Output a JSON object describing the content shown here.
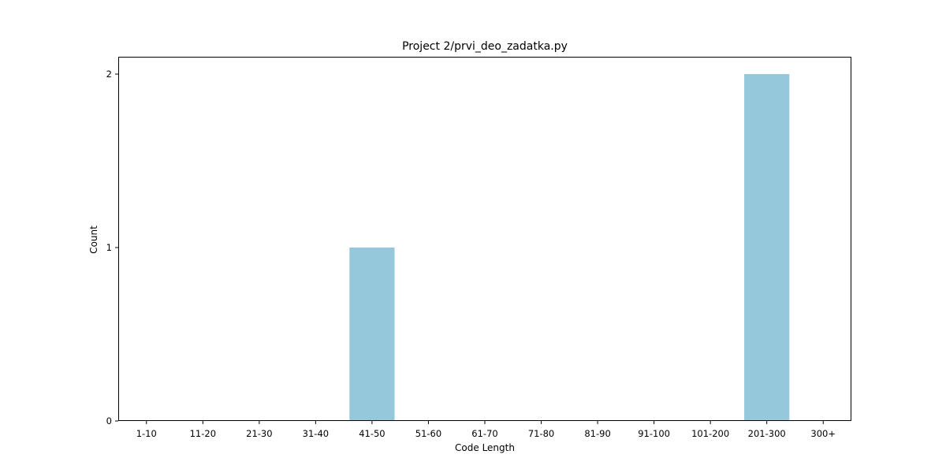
{
  "chart_data": {
    "type": "bar",
    "title": "Project 2/prvi_deo_zadatka.py",
    "xlabel": "Code Length",
    "ylabel": "Count",
    "categories": [
      "1-10",
      "11-20",
      "21-30",
      "31-40",
      "41-50",
      "51-60",
      "61-70",
      "71-80",
      "81-90",
      "91-100",
      "101-200",
      "201-300",
      "300+"
    ],
    "values": [
      0,
      0,
      0,
      0,
      1,
      0,
      0,
      0,
      0,
      0,
      0,
      2,
      0
    ],
    "ylim": [
      0,
      2.1
    ],
    "yticks": [
      0,
      1,
      2
    ],
    "grid": false,
    "bar_color": "#96c8dc"
  }
}
